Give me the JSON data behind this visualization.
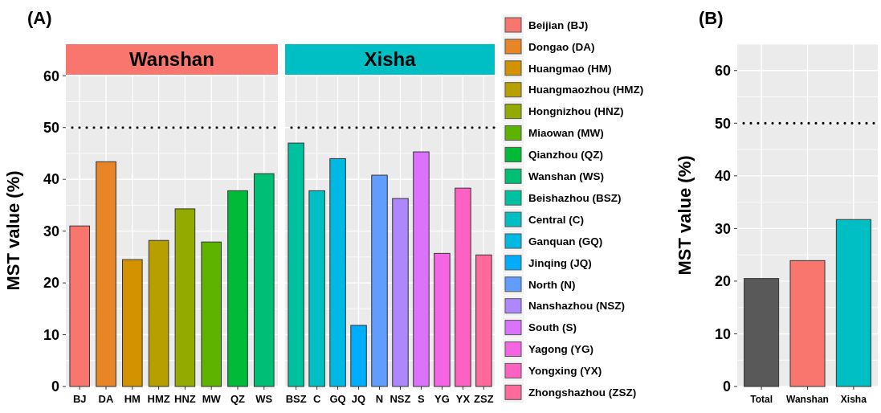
{
  "chart_data": [
    {
      "type": "bar",
      "title": "Wanshan",
      "ylabel": "MST value (%)",
      "annotations": [
        "(A)"
      ],
      "categories": [
        "BJ",
        "DA",
        "HM",
        "HMZ",
        "HNZ",
        "MW",
        "QZ",
        "WS"
      ],
      "series": [
        {
          "name": "Beijian (BJ)",
          "color": "#f8766d",
          "values": [
            31.0,
            null,
            null,
            null,
            null,
            null,
            null,
            null
          ]
        },
        {
          "name": "Dongao (DA)",
          "color": "#e88526",
          "values": [
            null,
            43.4,
            null,
            null,
            null,
            null,
            null,
            null
          ]
        },
        {
          "name": "Huangmao (HM)",
          "color": "#d39200",
          "values": [
            null,
            null,
            24.5,
            null,
            null,
            null,
            null,
            null
          ]
        },
        {
          "name": "Huangmaozhou (HMZ)",
          "color": "#b79f00",
          "values": [
            null,
            null,
            null,
            28.2,
            null,
            null,
            null,
            null
          ]
        },
        {
          "name": "Hongnizhou (HNZ)",
          "color": "#93aa00",
          "values": [
            null,
            null,
            null,
            null,
            34.3,
            null,
            null,
            null
          ]
        },
        {
          "name": "Miaowan (MW)",
          "color": "#5eb300",
          "values": [
            null,
            null,
            null,
            null,
            null,
            27.9,
            null,
            null
          ]
        },
        {
          "name": "Qianzhou (QZ)",
          "color": "#00ba38",
          "values": [
            null,
            null,
            null,
            null,
            null,
            null,
            37.8,
            null
          ]
        },
        {
          "name": "Wanshan (WS)",
          "color": "#00bf74",
          "values": [
            null,
            null,
            null,
            null,
            null,
            null,
            null,
            41.1
          ]
        }
      ],
      "ylim": [
        0,
        60.2
      ],
      "yticks": [
        0,
        10,
        20,
        30,
        40,
        50,
        60
      ],
      "grid": true,
      "legend": "right",
      "ref_lines": [
        {
          "axis": "y",
          "value": 50,
          "line_style": "dotted"
        }
      ]
    },
    {
      "type": "bar",
      "title": "Xisha",
      "categories": [
        "BSZ",
        "C",
        "GQ",
        "JQ",
        "N",
        "NSZ",
        "S",
        "YG",
        "YX",
        "ZSZ"
      ],
      "series": [
        {
          "name": "Beishazhou (BSZ)",
          "color": "#00c19f",
          "values": [
            47.0,
            null,
            null,
            null,
            null,
            null,
            null,
            null,
            null,
            null
          ]
        },
        {
          "name": "Central (C)",
          "color": "#00bfc4",
          "values": [
            null,
            37.8,
            null,
            null,
            null,
            null,
            null,
            null,
            null,
            null
          ]
        },
        {
          "name": "Ganquan (GQ)",
          "color": "#00b9e3",
          "values": [
            null,
            null,
            44.0,
            null,
            null,
            null,
            null,
            null,
            null,
            null
          ]
        },
        {
          "name": "Jinqing (JQ)",
          "color": "#00adfa",
          "values": [
            null,
            null,
            null,
            11.8,
            null,
            null,
            null,
            null,
            null,
            null
          ]
        },
        {
          "name": "North (N)",
          "color": "#619cff",
          "values": [
            null,
            null,
            null,
            null,
            40.8,
            null,
            null,
            null,
            null,
            null
          ]
        },
        {
          "name": "Nanshazhou (NSZ)",
          "color": "#ae87ff",
          "values": [
            null,
            null,
            null,
            null,
            null,
            36.3,
            null,
            null,
            null,
            null
          ]
        },
        {
          "name": "South (S)",
          "color": "#db72fb",
          "values": [
            null,
            null,
            null,
            null,
            null,
            null,
            45.3,
            null,
            null,
            null
          ]
        },
        {
          "name": "Yagong (YG)",
          "color": "#f564e3",
          "values": [
            null,
            null,
            null,
            null,
            null,
            null,
            null,
            25.7,
            null,
            null
          ]
        },
        {
          "name": "Yongxing (YX)",
          "color": "#ff61c3",
          "values": [
            null,
            null,
            null,
            null,
            null,
            null,
            null,
            null,
            38.3,
            null
          ]
        },
        {
          "name": "Zhongshazhou (ZSZ)",
          "color": "#ff699c",
          "values": [
            null,
            null,
            null,
            null,
            null,
            null,
            null,
            null,
            null,
            25.4
          ]
        }
      ],
      "ylim": [
        0,
        60.2
      ],
      "yticks": [
        0,
        10,
        20,
        30,
        40,
        50,
        60
      ],
      "grid": true,
      "legend": "right",
      "tick_labels": "x",
      "ref_lines": [
        {
          "axis": "y",
          "value": 50,
          "line_style": "dotted"
        }
      ]
    },
    {
      "type": "bar",
      "ylabel": "MST value (%)",
      "annotations": [
        "(B)"
      ],
      "categories": [
        "Total",
        "Wanshan",
        "Xisha"
      ],
      "values": [
        20.5,
        23.9,
        31.7
      ],
      "colors": [
        "#595959",
        "#f8766d",
        "#00bfc4"
      ],
      "ylim": [
        0,
        65
      ],
      "yticks": [
        0,
        10,
        20,
        30,
        40,
        50,
        60
      ],
      "grid": true,
      "ref_lines": [
        {
          "axis": "y",
          "value": 50,
          "line_style": "dotted"
        }
      ]
    }
  ]
}
